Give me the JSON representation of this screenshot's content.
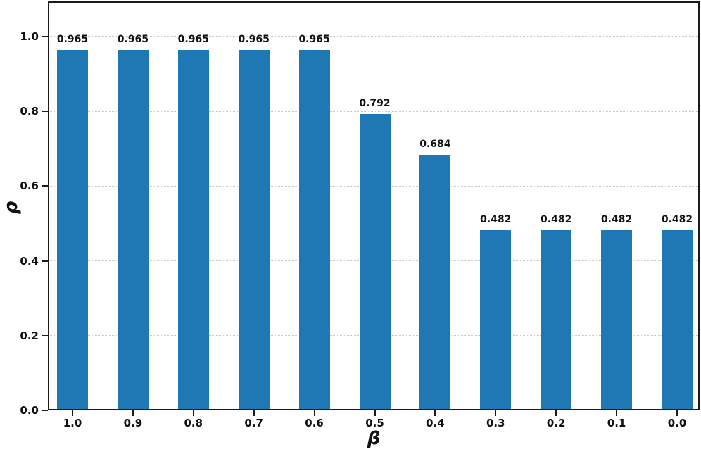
{
  "chart_data": {
    "type": "bar",
    "title": "",
    "xlabel": "β",
    "ylabel": "ρ",
    "categories": [
      "1.0",
      "0.9",
      "0.8",
      "0.7",
      "0.6",
      "0.5",
      "0.4",
      "0.3",
      "0.2",
      "0.1",
      "0.0"
    ],
    "values": [
      0.965,
      0.965,
      0.965,
      0.965,
      0.965,
      0.792,
      0.684,
      0.482,
      0.482,
      0.482,
      0.482
    ],
    "bar_labels": [
      "0.965",
      "0.965",
      "0.965",
      "0.965",
      "0.965",
      "0.792",
      "0.684",
      "0.482",
      "0.482",
      "0.482",
      "0.482"
    ],
    "yticks": [
      0.0,
      0.2,
      0.4,
      0.6,
      0.8,
      1.0
    ],
    "ytick_labels": [
      "0.0",
      "0.2",
      "0.4",
      "0.6",
      "0.8",
      "1.0"
    ],
    "ylim": [
      0,
      1.094
    ],
    "bar_color": "#1f77b4",
    "grid": "horizontal-dotted",
    "legend": "none"
  }
}
